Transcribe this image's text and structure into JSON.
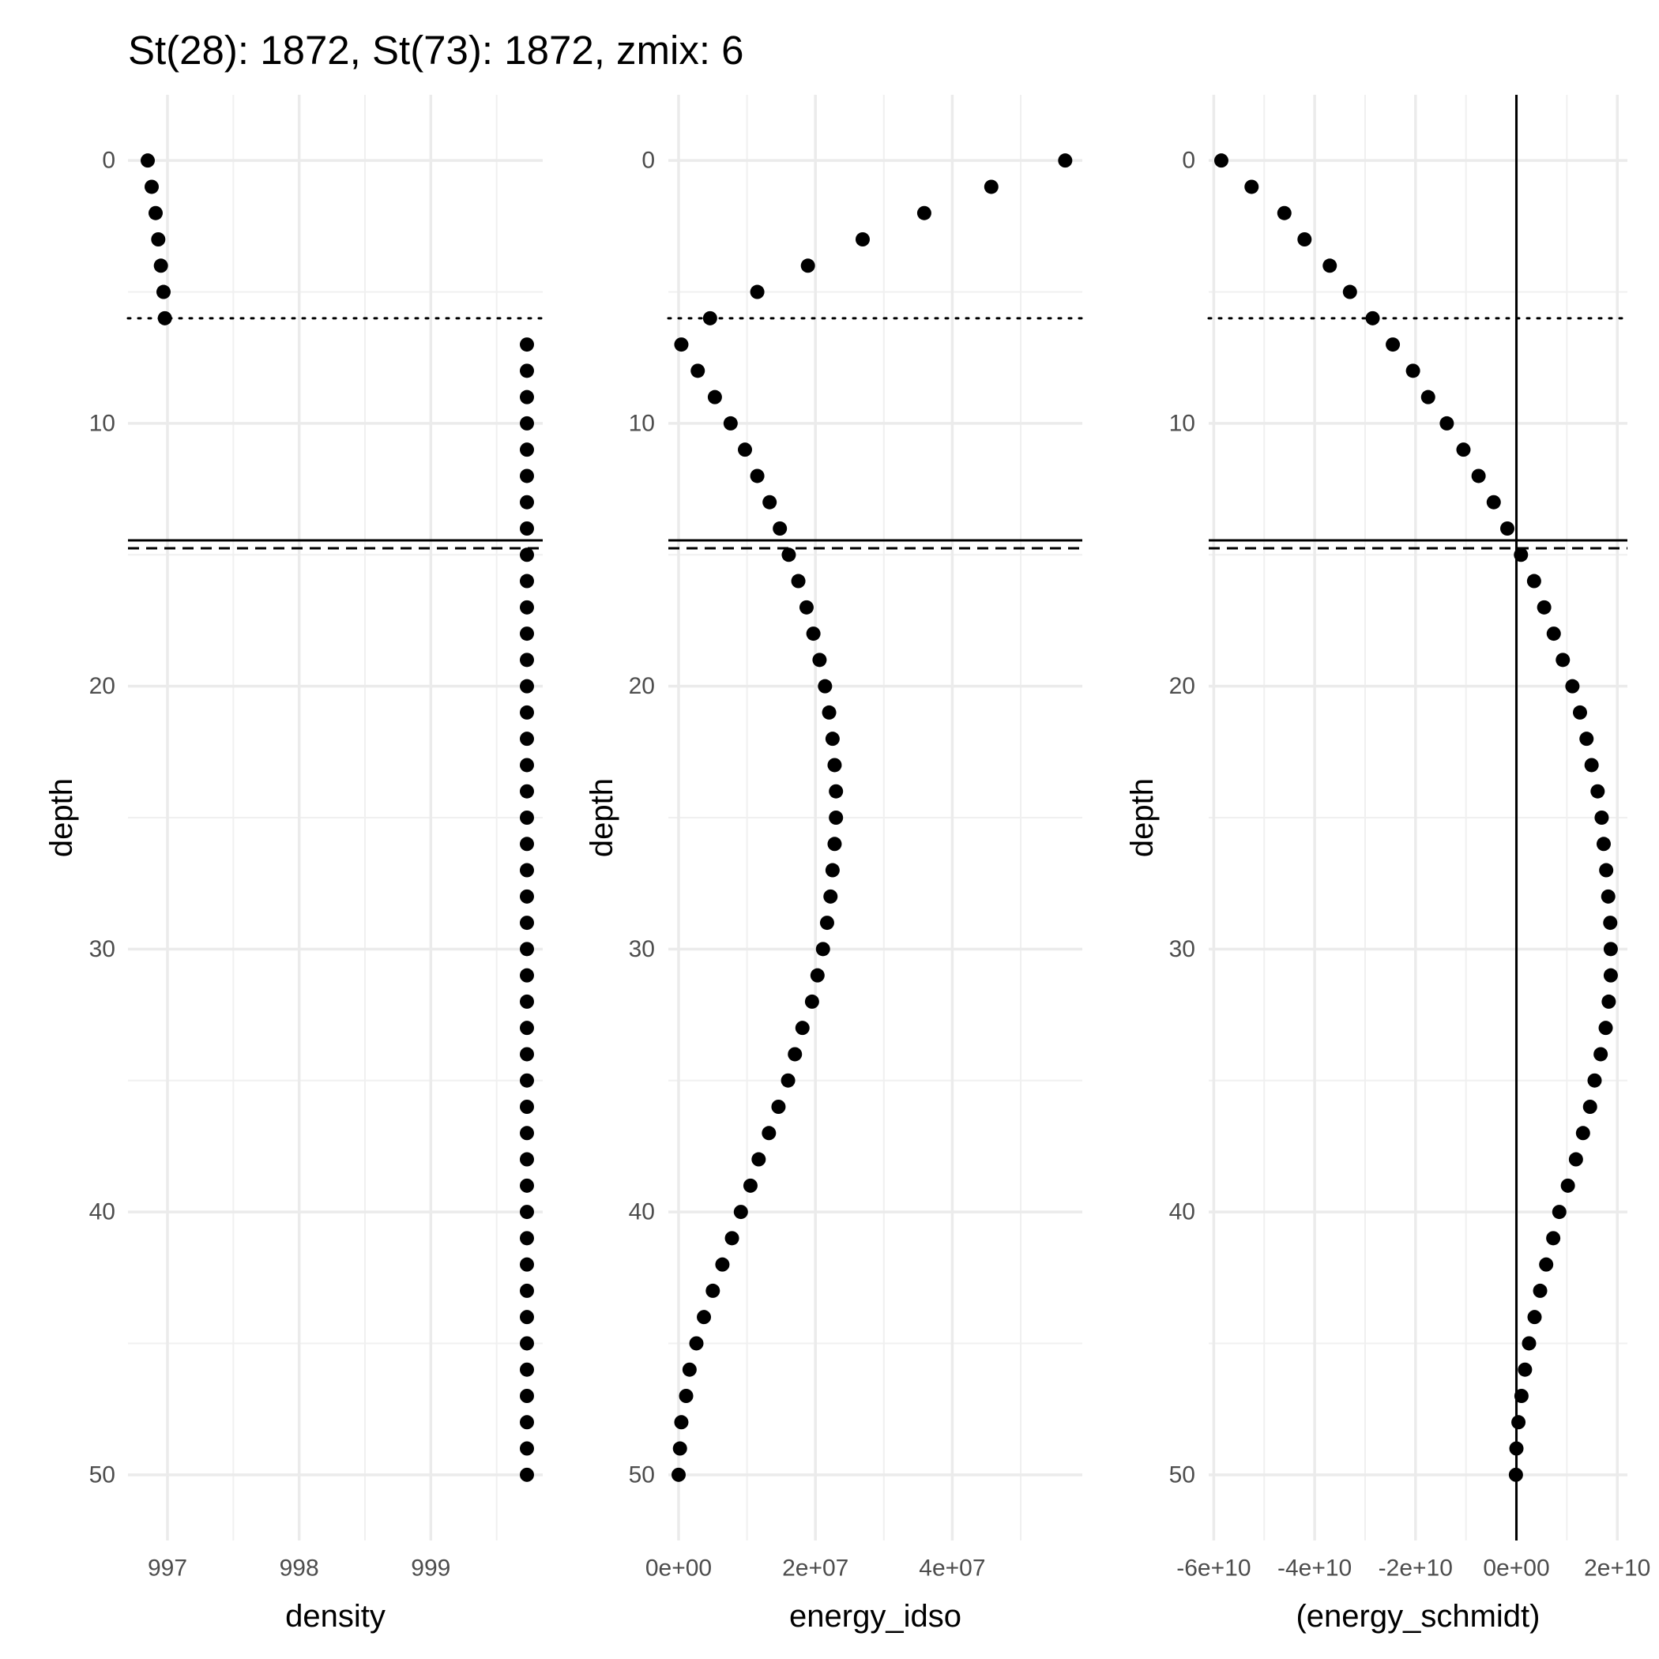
{
  "title": "St(28): 1872, St(73): 1872, zmix: 6",
  "chart_data": [
    {
      "type": "scatter",
      "xlabel": "density",
      "ylabel": "depth",
      "x_ticks": [
        "997",
        "998",
        "999"
      ],
      "x_tick_values": [
        997,
        998,
        999
      ],
      "xlim": [
        996.7,
        999.85
      ],
      "y_ticks": [
        "0",
        "10",
        "20",
        "30",
        "40",
        "50"
      ],
      "y_tick_values": [
        0,
        10,
        20,
        30,
        40,
        50
      ],
      "ylim": [
        52.5,
        -2.5
      ],
      "y_reversed": true,
      "grid": true,
      "depth": [
        0,
        1,
        2,
        3,
        4,
        5,
        6,
        7,
        8,
        9,
        10,
        11,
        12,
        13,
        14,
        15,
        16,
        17,
        18,
        19,
        20,
        21,
        22,
        23,
        24,
        25,
        26,
        27,
        28,
        29,
        30,
        31,
        32,
        33,
        34,
        35,
        36,
        37,
        38,
        39,
        40,
        41,
        42,
        43,
        44,
        45,
        46,
        47,
        48,
        49,
        50
      ],
      "x": [
        996.85,
        996.88,
        996.91,
        996.93,
        996.95,
        996.97,
        996.98,
        999.73,
        999.73,
        999.73,
        999.73,
        999.73,
        999.73,
        999.73,
        999.73,
        999.73,
        999.73,
        999.73,
        999.73,
        999.73,
        999.73,
        999.73,
        999.73,
        999.73,
        999.73,
        999.73,
        999.73,
        999.73,
        999.73,
        999.73,
        999.73,
        999.73,
        999.73,
        999.73,
        999.73,
        999.73,
        999.73,
        999.73,
        999.73,
        999.73,
        999.73,
        999.73,
        999.73,
        999.73,
        999.73,
        999.73,
        999.73,
        999.73,
        999.73,
        999.73,
        999.73
      ],
      "hlines": [
        {
          "y": 6,
          "style": "dotted"
        },
        {
          "y": 14.45,
          "style": "solid"
        },
        {
          "y": 14.75,
          "style": "dashed"
        }
      ],
      "vlines": []
    },
    {
      "type": "scatter",
      "xlabel": "energy_idso",
      "ylabel": "depth",
      "x_ticks": [
        "0e+00",
        "2e+07",
        "4e+07"
      ],
      "x_tick_values": [
        0,
        20000000,
        40000000
      ],
      "xlim": [
        -1500000,
        59000000
      ],
      "y_ticks": [
        "0",
        "10",
        "20",
        "30",
        "40",
        "50"
      ],
      "y_tick_values": [
        0,
        10,
        20,
        30,
        40,
        50
      ],
      "ylim": [
        52.5,
        -2.5
      ],
      "y_reversed": true,
      "grid": true,
      "depth": [
        0,
        1,
        2,
        3,
        4,
        5,
        6,
        7,
        8,
        9,
        10,
        11,
        12,
        13,
        14,
        15,
        16,
        17,
        18,
        19,
        20,
        21,
        22,
        23,
        24,
        25,
        26,
        27,
        28,
        29,
        30,
        31,
        32,
        33,
        34,
        35,
        36,
        37,
        38,
        39,
        40,
        41,
        42,
        43,
        44,
        45,
        46,
        47,
        48,
        49,
        50
      ],
      "x": [
        56500000,
        45700000,
        35900000,
        26900000,
        18900000,
        11500000,
        4600000,
        400000,
        2800000,
        5300000,
        7600000,
        9700000,
        11500000,
        13300000,
        14800000,
        16100000,
        17500000,
        18700000,
        19700000,
        20600000,
        21400000,
        22000000,
        22500000,
        22800000,
        23000000,
        23000000,
        22800000,
        22500000,
        22200000,
        21700000,
        21100000,
        20300000,
        19500000,
        18100000,
        17000000,
        16000000,
        14600000,
        13200000,
        11700000,
        10500000,
        9100000,
        7800000,
        6400000,
        5000000,
        3700000,
        2600000,
        1600000,
        1100000,
        400000,
        200000,
        0
      ],
      "hlines": [
        {
          "y": 6,
          "style": "dotted"
        },
        {
          "y": 14.45,
          "style": "solid"
        },
        {
          "y": 14.75,
          "style": "dashed"
        }
      ],
      "vlines": []
    },
    {
      "type": "scatter",
      "xlabel": "(energy_schmidt)",
      "ylabel": "depth",
      "x_ticks": [
        "-6e+10",
        "-4e+10",
        "-2e+10",
        "0e+00",
        "2e+10"
      ],
      "x_tick_values": [
        -60000000000,
        -40000000000,
        -20000000000,
        0,
        20000000000
      ],
      "xlim": [
        -61000000000,
        22000000000
      ],
      "y_ticks": [
        "0",
        "10",
        "20",
        "30",
        "40",
        "50"
      ],
      "y_tick_values": [
        0,
        10,
        20,
        30,
        40,
        50
      ],
      "ylim": [
        52.5,
        -2.5
      ],
      "y_reversed": true,
      "grid": true,
      "depth": [
        0,
        1,
        2,
        3,
        4,
        5,
        6,
        7,
        8,
        9,
        10,
        11,
        12,
        13,
        14,
        15,
        16,
        17,
        18,
        19,
        20,
        21,
        22,
        23,
        24,
        25,
        26,
        27,
        28,
        29,
        30,
        31,
        32,
        33,
        34,
        35,
        36,
        37,
        38,
        39,
        40,
        41,
        42,
        43,
        44,
        45,
        46,
        47,
        48,
        49,
        50
      ],
      "x": [
        -58500000000,
        -52500000000,
        -46000000000,
        -42000000000,
        -37000000000,
        -33000000000,
        -28500000000,
        -24500000000,
        -20500000000,
        -17500000000,
        -13800000000,
        -10500000000,
        -7500000000,
        -4500000000,
        -1800000000,
        900000000,
        3500000000,
        5500000000,
        7400000000,
        9200000000,
        11100000000,
        12600000000,
        13900000000,
        14900000000,
        16100000000,
        16900000000,
        17300000000,
        17800000000,
        18200000000,
        18600000000,
        18700000000,
        18700000000,
        18300000000,
        17700000000,
        16700000000,
        15500000000,
        14600000000,
        13200000000,
        11800000000,
        10200000000,
        8500000000,
        7300000000,
        5900000000,
        4700000000,
        3600000000,
        2500000000,
        1700000000,
        1000000000,
        400000000,
        0,
        -100000000
      ],
      "hlines": [
        {
          "y": 6,
          "style": "dotted"
        },
        {
          "y": 14.45,
          "style": "solid"
        },
        {
          "y": 14.75,
          "style": "dashed"
        }
      ],
      "vlines": [
        {
          "x": 0,
          "style": "solid"
        }
      ]
    }
  ]
}
